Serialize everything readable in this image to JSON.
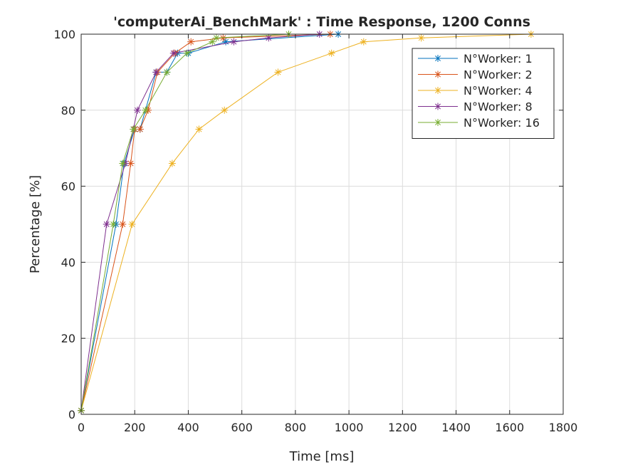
{
  "chart_data": {
    "type": "line",
    "title": "'computerAi_BenchMark' : Time Response, 1200 Conns",
    "xlabel": "Time [ms]",
    "ylabel": "Percentage [%]",
    "xlim": [
      0,
      1800
    ],
    "ylim": [
      0,
      100
    ],
    "xticks": [
      "0",
      "200",
      "400",
      "600",
      "800",
      "1000",
      "1200",
      "1400",
      "1600",
      "1800"
    ],
    "yticks": [
      "0",
      "20",
      "40",
      "60",
      "80",
      "100"
    ],
    "grid": true,
    "legend_placement": "top-right",
    "marker": "asterisk",
    "series": [
      {
        "name": "N°Worker: 1",
        "color": "#0072BD",
        "x": [
          0,
          130,
          160,
          200,
          220,
          280,
          320,
          360,
          400,
          540,
          960
        ],
        "y": [
          1,
          50,
          66,
          75,
          75,
          90,
          90,
          95,
          95,
          98,
          100
        ]
      },
      {
        "name": "N°Worker: 2",
        "color": "#D95319",
        "x": [
          0,
          155,
          185,
          200,
          220,
          250,
          285,
          350,
          410,
          530,
          930
        ],
        "y": [
          1,
          50,
          66,
          75,
          75,
          80,
          90,
          95,
          98,
          99,
          100
        ]
      },
      {
        "name": "N°Worker: 4",
        "color": "#EDB120",
        "x": [
          0,
          190,
          340,
          440,
          535,
          735,
          935,
          1055,
          1270,
          1680
        ],
        "y": [
          1,
          50,
          66,
          75,
          80,
          90,
          95,
          98,
          99,
          100
        ]
      },
      {
        "name": "N°Worker: 8",
        "color": "#7E2F8E",
        "x": [
          0,
          95,
          165,
          195,
          210,
          280,
          345,
          570,
          700,
          890
        ],
        "y": [
          1,
          50,
          66,
          75,
          80,
          90,
          95,
          98,
          99,
          100
        ]
      },
      {
        "name": "N°Worker: 16",
        "color": "#77AC30",
        "x": [
          0,
          120,
          155,
          195,
          240,
          320,
          395,
          490,
          505,
          775
        ],
        "y": [
          1,
          50,
          66,
          75,
          80,
          90,
          95,
          98,
          99,
          100
        ]
      }
    ]
  }
}
